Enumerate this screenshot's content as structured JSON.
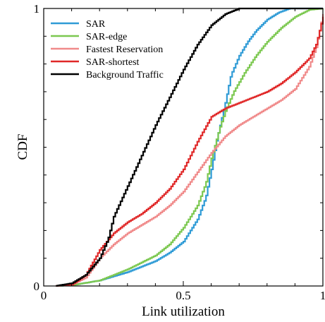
{
  "chart_data": {
    "type": "line",
    "step": true,
    "title": "",
    "xlabel": "Link utilization",
    "ylabel": "CDF",
    "xlim": [
      0,
      1
    ],
    "ylim": [
      0,
      1
    ],
    "xticks": [
      {
        "value": 0,
        "label": "0"
      },
      {
        "value": 0.5,
        "label": "0.5"
      },
      {
        "value": 1,
        "label": "1"
      }
    ],
    "yticks": [
      {
        "value": 0,
        "label": "0"
      },
      {
        "value": 1,
        "label": "1"
      }
    ],
    "grid": false,
    "legend_position": "top-left",
    "series": [
      {
        "name": "SAR",
        "color": "#2f9bd6",
        "points": [
          [
            0.04,
            0
          ],
          [
            0.1,
            0.003
          ],
          [
            0.2,
            0.02
          ],
          [
            0.3,
            0.05
          ],
          [
            0.4,
            0.09
          ],
          [
            0.45,
            0.12
          ],
          [
            0.5,
            0.16
          ],
          [
            0.55,
            0.24
          ],
          [
            0.58,
            0.32
          ],
          [
            0.6,
            0.42
          ],
          [
            0.62,
            0.53
          ],
          [
            0.65,
            0.66
          ],
          [
            0.67,
            0.76
          ],
          [
            0.7,
            0.83
          ],
          [
            0.73,
            0.88
          ],
          [
            0.76,
            0.92
          ],
          [
            0.8,
            0.96
          ],
          [
            0.84,
            0.985
          ],
          [
            0.88,
            1.0
          ],
          [
            1.0,
            1.0
          ]
        ]
      },
      {
        "name": "SAR-edge",
        "color": "#7cc850",
        "points": [
          [
            0.04,
            0
          ],
          [
            0.1,
            0.003
          ],
          [
            0.2,
            0.02
          ],
          [
            0.3,
            0.06
          ],
          [
            0.4,
            0.11
          ],
          [
            0.45,
            0.15
          ],
          [
            0.5,
            0.21
          ],
          [
            0.55,
            0.29
          ],
          [
            0.58,
            0.37
          ],
          [
            0.6,
            0.46
          ],
          [
            0.63,
            0.57
          ],
          [
            0.65,
            0.63
          ],
          [
            0.68,
            0.7
          ],
          [
            0.72,
            0.77
          ],
          [
            0.76,
            0.83
          ],
          [
            0.8,
            0.88
          ],
          [
            0.85,
            0.93
          ],
          [
            0.9,
            0.97
          ],
          [
            0.95,
            0.995
          ],
          [
            1.0,
            1.0
          ]
        ]
      },
      {
        "name": "Fastest Reservation",
        "color": "#f08a8a",
        "points": [
          [
            0.04,
            0
          ],
          [
            0.1,
            0.005
          ],
          [
            0.15,
            0.03
          ],
          [
            0.2,
            0.1
          ],
          [
            0.25,
            0.15
          ],
          [
            0.3,
            0.19
          ],
          [
            0.35,
            0.22
          ],
          [
            0.4,
            0.25
          ],
          [
            0.45,
            0.29
          ],
          [
            0.5,
            0.34
          ],
          [
            0.55,
            0.41
          ],
          [
            0.6,
            0.48
          ],
          [
            0.65,
            0.54
          ],
          [
            0.7,
            0.58
          ],
          [
            0.75,
            0.61
          ],
          [
            0.8,
            0.64
          ],
          [
            0.85,
            0.67
          ],
          [
            0.9,
            0.71
          ],
          [
            0.95,
            0.79
          ],
          [
            0.975,
            0.86
          ],
          [
            1.0,
            0.98
          ]
        ]
      },
      {
        "name": "SAR-shortest",
        "color": "#e02828",
        "points": [
          [
            0.04,
            0
          ],
          [
            0.1,
            0.005
          ],
          [
            0.15,
            0.04
          ],
          [
            0.2,
            0.13
          ],
          [
            0.25,
            0.19
          ],
          [
            0.3,
            0.23
          ],
          [
            0.35,
            0.26
          ],
          [
            0.4,
            0.3
          ],
          [
            0.45,
            0.35
          ],
          [
            0.5,
            0.42
          ],
          [
            0.55,
            0.52
          ],
          [
            0.6,
            0.61
          ],
          [
            0.65,
            0.64
          ],
          [
            0.7,
            0.66
          ],
          [
            0.75,
            0.68
          ],
          [
            0.8,
            0.7
          ],
          [
            0.85,
            0.73
          ],
          [
            0.9,
            0.77
          ],
          [
            0.95,
            0.82
          ],
          [
            0.975,
            0.87
          ],
          [
            0.99,
            0.93
          ],
          [
            1.0,
            0.97
          ]
        ]
      },
      {
        "name": "Background Traffic",
        "color": "#000000",
        "points": [
          [
            0.04,
            0
          ],
          [
            0.1,
            0.01
          ],
          [
            0.15,
            0.04
          ],
          [
            0.2,
            0.1
          ],
          [
            0.23,
            0.17
          ],
          [
            0.25,
            0.25
          ],
          [
            0.3,
            0.36
          ],
          [
            0.35,
            0.47
          ],
          [
            0.4,
            0.58
          ],
          [
            0.45,
            0.68
          ],
          [
            0.5,
            0.78
          ],
          [
            0.55,
            0.87
          ],
          [
            0.6,
            0.94
          ],
          [
            0.65,
            0.98
          ],
          [
            0.7,
            1.0
          ],
          [
            1.0,
            1.0
          ]
        ]
      }
    ]
  }
}
